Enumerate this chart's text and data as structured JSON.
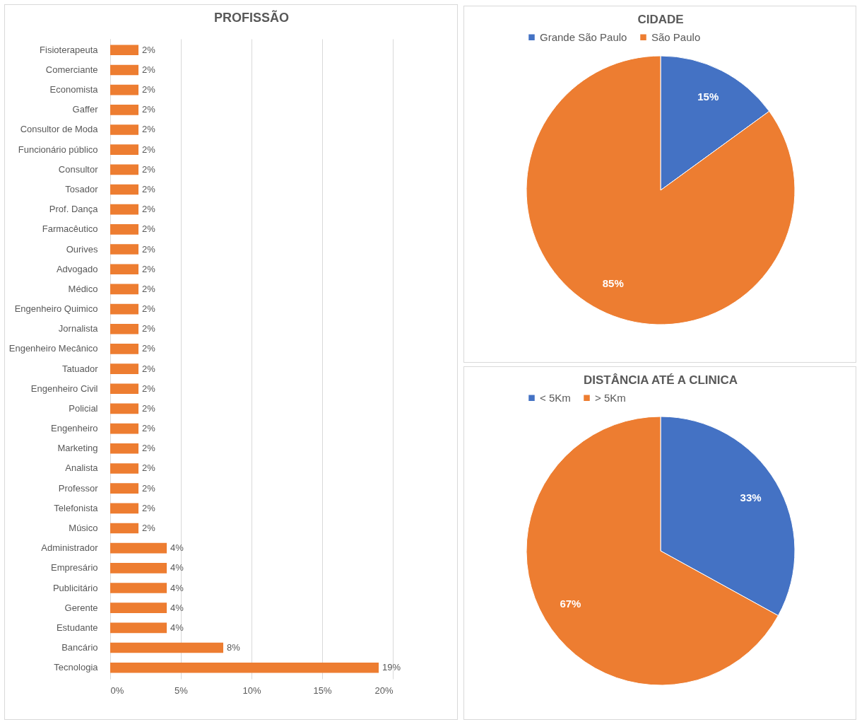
{
  "chart_data": [
    {
      "type": "bar",
      "orientation": "horizontal",
      "title": "PROFISSÃO",
      "categories": [
        "Fisioterapeuta",
        "Comerciante",
        "Economista",
        "Gaffer",
        "Consultor de Moda",
        "Funcionário público",
        "Consultor",
        "Tosador",
        "Prof. Dança",
        "Farmacêutico",
        "Ourives",
        "Advogado",
        "Médico",
        "Engenheiro Quimico",
        "Jornalista",
        "Engenheiro Mecânico",
        "Tatuador",
        "Engenheiro Civil",
        "Policial",
        "Engenheiro",
        "Marketing",
        "Analista",
        "Professor",
        "Telefonista",
        "Músico",
        "Administrador",
        "Empresário",
        "Publicitário",
        "Gerente",
        "Estudante",
        "Bancário",
        "Tecnologia"
      ],
      "values": [
        2,
        2,
        2,
        2,
        2,
        2,
        2,
        2,
        2,
        2,
        2,
        2,
        2,
        2,
        2,
        2,
        2,
        2,
        2,
        2,
        2,
        2,
        2,
        2,
        2,
        4,
        4,
        4,
        4,
        4,
        8,
        19
      ],
      "value_labels": [
        "2%",
        "2%",
        "2%",
        "2%",
        "2%",
        "2%",
        "2%",
        "2%",
        "2%",
        "2%",
        "2%",
        "2%",
        "2%",
        "2%",
        "2%",
        "2%",
        "2%",
        "2%",
        "2%",
        "2%",
        "2%",
        "2%",
        "2%",
        "2%",
        "2%",
        "4%",
        "4%",
        "4%",
        "4%",
        "4%",
        "8%",
        "19%"
      ],
      "color": "#ed7d31",
      "xlim": [
        0,
        20
      ],
      "xticks": [
        {
          "value": 0,
          "label": "0%"
        },
        {
          "value": 5,
          "label": "5%"
        },
        {
          "value": 10,
          "label": "10%"
        },
        {
          "value": 15,
          "label": "15%"
        },
        {
          "value": 20,
          "label": "20%"
        }
      ],
      "grid": "x"
    },
    {
      "type": "pie",
      "title": "CIDADE",
      "categories": [
        "Grande São Paulo",
        "São Paulo"
      ],
      "values": [
        15,
        85
      ],
      "value_labels": [
        "15%",
        "85%"
      ],
      "colors": [
        "#4472c4",
        "#ed7d31"
      ],
      "legend": "top"
    },
    {
      "type": "pie",
      "title": "DISTÂNCIA ATÉ A CLINICA",
      "categories": [
        "< 5Km",
        "> 5Km"
      ],
      "values": [
        33,
        67
      ],
      "value_labels": [
        "33%",
        "67%"
      ],
      "colors": [
        "#4472c4",
        "#ed7d31"
      ],
      "legend": "top"
    }
  ]
}
